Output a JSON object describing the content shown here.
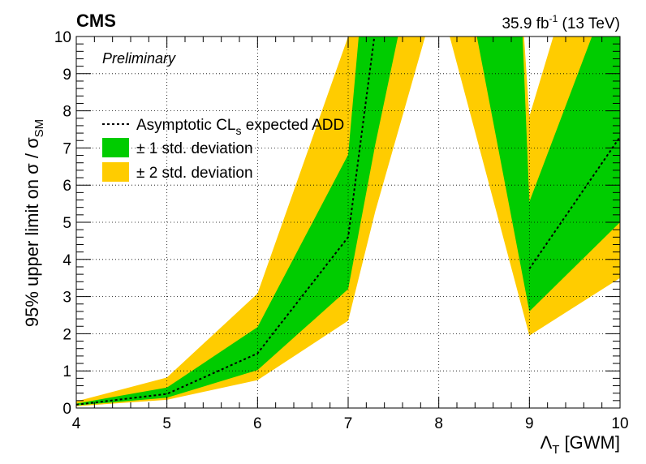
{
  "chart_data": {
    "type": "area",
    "title": "",
    "experiment": "CMS",
    "status": "Preliminary",
    "lumi": {
      "text": "35.9 fb",
      "sup": "-1",
      "energy": "(13 TeV)"
    },
    "xlabel": {
      "main": "Λ",
      "sub": "T",
      "rest": " [GWM]"
    },
    "ylabel": {
      "main": "95% upper limit on σ / σ",
      "sub": "SM"
    },
    "xlim": [
      4,
      10
    ],
    "ylim": [
      0,
      10
    ],
    "xticks": [
      4,
      5,
      6,
      7,
      8,
      9,
      10
    ],
    "yticks": [
      0,
      1,
      2,
      3,
      4,
      5,
      6,
      7,
      8,
      9,
      10
    ],
    "grid": true,
    "legend_position": "upper-left",
    "colors": {
      "band1": "#00cc00",
      "band2": "#ffcc00",
      "expected": "#000000"
    },
    "series": [
      {
        "segment": "left",
        "x": [
          4.0,
          5.0,
          6.0,
          7.0,
          7.3
        ],
        "expected": [
          0.09,
          0.38,
          1.47,
          4.6,
          10.2
        ],
        "minus1": [
          0.07,
          0.28,
          1.02,
          3.2,
          7.1
        ],
        "plus1": [
          0.12,
          0.55,
          2.18,
          6.82,
          15.0
        ],
        "minus2": [
          0.05,
          0.22,
          0.75,
          2.35,
          5.3
        ],
        "plus2": [
          0.18,
          0.82,
          3.08,
          10.0,
          21.0
        ]
      },
      {
        "segment": "right",
        "x": [
          9.0,
          10.0
        ],
        "expected": [
          3.75,
          7.3
        ],
        "minus1": [
          2.6,
          5.0
        ],
        "plus1": [
          5.55,
          12.0
        ],
        "minus2": [
          1.95,
          3.5
        ],
        "plus2": [
          7.85,
          16.0
        ]
      }
    ],
    "edge_bands": {
      "band2_left_limit": 7.85,
      "band1_left_limit": 7.55,
      "band2_right_start": 8.12,
      "band1_right_start": 8.42
    },
    "legend": [
      {
        "key": "expected",
        "label": "Asymptotic CL",
        "sub": "s",
        "rest": " expected ADD"
      },
      {
        "key": "band1",
        "label": "± 1 std. deviation"
      },
      {
        "key": "band2",
        "label": "± 2 std. deviation"
      }
    ]
  }
}
